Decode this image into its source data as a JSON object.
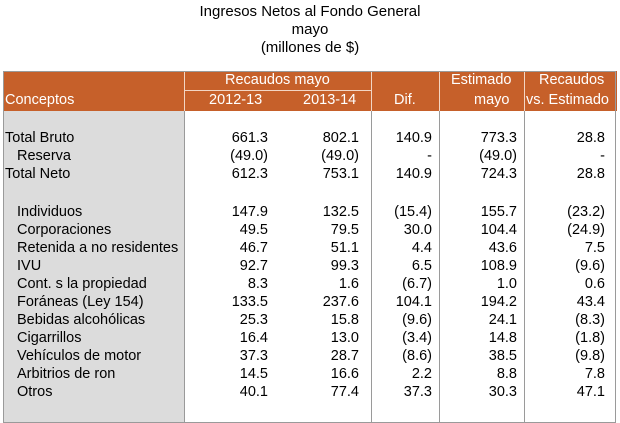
{
  "title": {
    "line1": "Ingresos Netos al Fondo General",
    "line2": "mayo",
    "line3": "(millones de $)"
  },
  "header": {
    "conceptos": "Conceptos",
    "recaudos_mayo": "Recaudos mayo",
    "col_2012": "2012-13",
    "col_2013": "2013-14",
    "dif": "Dif.",
    "estimado_line1": "Estimado",
    "estimado_line2": "mayo",
    "recaudos_line1": "Recaudos",
    "recaudos_line2": "vs. Estimado"
  },
  "rows": [
    {
      "label": "Total Bruto",
      "indent": 0,
      "c1": "661.3",
      "c2": "802.1",
      "dif": "140.9",
      "est": "773.3",
      "vs": "28.8"
    },
    {
      "label": "Reserva",
      "indent": 1,
      "c1": "(49.0)",
      "c2": "(49.0)",
      "dif": "-",
      "est": "(49.0)",
      "vs": "-"
    },
    {
      "label": "Total Neto",
      "indent": 0,
      "c1": "612.3",
      "c2": "753.1",
      "dif": "140.9",
      "est": "724.3",
      "vs": "28.8"
    },
    {
      "label": "Individuos",
      "indent": 1,
      "c1": "147.9",
      "c2": "132.5",
      "dif": "(15.4)",
      "est": "155.7",
      "vs": "(23.2)"
    },
    {
      "label": "Corporaciones",
      "indent": 1,
      "c1": "49.5",
      "c2": "79.5",
      "dif": "30.0",
      "est": "104.4",
      "vs": "(24.9)"
    },
    {
      "label": "Retenida a no residentes",
      "indent": 1,
      "c1": "46.7",
      "c2": "51.1",
      "dif": "4.4",
      "est": "43.6",
      "vs": "7.5"
    },
    {
      "label": "IVU",
      "indent": 1,
      "c1": "92.7",
      "c2": "99.3",
      "dif": "6.5",
      "est": "108.9",
      "vs": "(9.6)"
    },
    {
      "label": "Cont. s la propiedad",
      "indent": 1,
      "c1": "8.3",
      "c2": "1.6",
      "dif": "(6.7)",
      "est": "1.0",
      "vs": "0.6"
    },
    {
      "label": "Foráneas (Ley 154)",
      "indent": 1,
      "c1": "133.5",
      "c2": "237.6",
      "dif": "104.1",
      "est": "194.2",
      "vs": "43.4"
    },
    {
      "label": "Bebidas alcohólicas",
      "indent": 1,
      "c1": "25.3",
      "c2": "15.8",
      "dif": "(9.6)",
      "est": "24.1",
      "vs": "(8.3)"
    },
    {
      "label": "Cigarrillos",
      "indent": 1,
      "c1": "16.4",
      "c2": "13.0",
      "dif": "(3.4)",
      "est": "14.8",
      "vs": "(1.8)"
    },
    {
      "label": "Vehículos de motor",
      "indent": 1,
      "c1": "37.3",
      "c2": "28.7",
      "dif": "(8.6)",
      "est": "38.5",
      "vs": "(9.8)"
    },
    {
      "label": "Arbitrios de ron",
      "indent": 1,
      "c1": "14.5",
      "c2": "16.6",
      "dif": "2.2",
      "est": "8.8",
      "vs": "7.8"
    },
    {
      "label": "Otros",
      "indent": 1,
      "c1": "40.1",
      "c2": "77.4",
      "dif": "37.3",
      "est": "30.3",
      "vs": "47.1"
    }
  ],
  "colors": {
    "header_bg": "#c6602a",
    "label_col_bg": "#dcdcdc"
  }
}
